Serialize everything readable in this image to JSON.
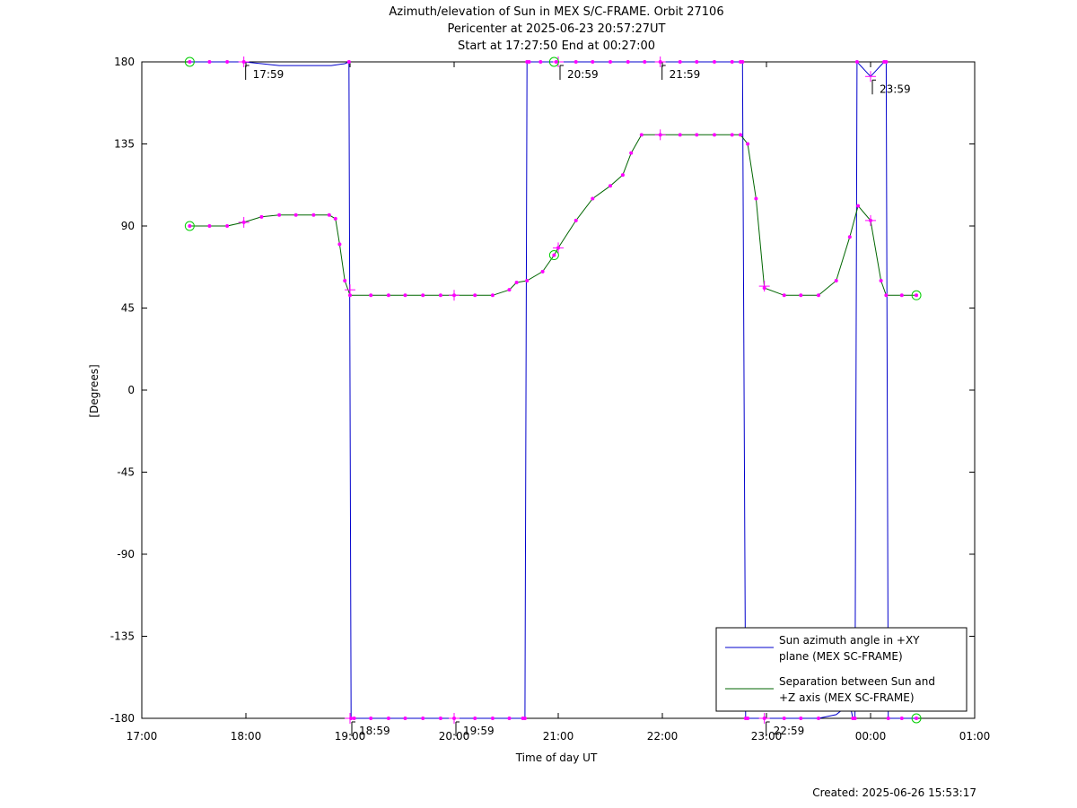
{
  "chart_data": {
    "type": "line",
    "title": [
      "Azimuth/elevation of Sun in MEX S/C-FRAME.  Orbit 27106",
      "Pericenter at 2025-06-23 20:57:27UT",
      "Start at 17:27:50 End at 00:27:00"
    ],
    "xlabel": "Time of day UT",
    "ylabel": "[Degrees]",
    "x_unit": "hours since 17:00",
    "xlim": [
      17.0,
      25.0
    ],
    "ylim": [
      -180,
      180
    ],
    "xticks": [
      17,
      18,
      19,
      20,
      21,
      22,
      23,
      24,
      25
    ],
    "xtick_labels": [
      "17:00",
      "18:00",
      "19:00",
      "20:00",
      "21:00",
      "22:00",
      "23:00",
      "00:00",
      "01:00"
    ],
    "yticks": [
      180,
      135,
      90,
      45,
      0,
      -45,
      -90,
      -135,
      -180
    ],
    "ytick_labels": [
      "180",
      "135",
      "90",
      "45",
      "0",
      "-45",
      "-90",
      "-135",
      "-180"
    ],
    "legend_position": "bottom-right",
    "series": [
      {
        "name": "Sun azimuth angle in +XY plane (MEX SC-FRAME)",
        "legend_lines": [
          "Sun azimuth angle in +XY",
          "plane (MEX SC-FRAME)"
        ],
        "color": "#0000cc",
        "x": [
          17.46,
          17.65,
          17.82,
          17.98,
          18.15,
          18.32,
          18.48,
          18.65,
          18.82,
          18.95,
          18.99,
          19.01,
          19.04,
          19.2,
          19.37,
          19.53,
          19.7,
          19.87,
          20.0,
          20.2,
          20.37,
          20.53,
          20.66,
          20.68,
          20.7,
          20.72,
          20.83,
          20.98,
          21.17,
          21.33,
          21.5,
          21.67,
          21.83,
          21.98,
          22.17,
          22.33,
          22.5,
          22.67,
          22.75,
          22.77,
          22.8,
          22.82,
          22.98,
          23.17,
          23.33,
          23.5,
          23.67,
          23.8,
          23.83,
          23.85,
          23.87,
          24.0,
          24.13,
          24.15,
          24.17,
          24.3,
          24.44
        ],
        "y": [
          180,
          180,
          180,
          180,
          179,
          178,
          178,
          178,
          178,
          179,
          180,
          -180,
          -180,
          -180,
          -180,
          -180,
          -180,
          -180,
          -180,
          -180,
          -180,
          -180,
          -180,
          -180,
          180,
          180,
          180,
          180,
          180,
          180,
          180,
          180,
          180,
          180,
          180,
          180,
          180,
          180,
          180,
          180,
          -180,
          -180,
          -180,
          -180,
          -180,
          -180,
          -178,
          -172,
          -180,
          -180,
          180,
          172,
          180,
          180,
          -180,
          -180,
          -180
        ]
      },
      {
        "name": "Separation between Sun and +Z axis (MEX SC-FRAME)",
        "legend_lines": [
          "Separation between Sun and",
          "+Z axis (MEX SC-FRAME)"
        ],
        "color": "#006600",
        "x": [
          17.46,
          17.65,
          17.82,
          17.98,
          18.15,
          18.32,
          18.48,
          18.65,
          18.8,
          18.86,
          18.9,
          18.95,
          19.0,
          19.2,
          19.37,
          19.53,
          19.7,
          19.87,
          20.0,
          20.2,
          20.37,
          20.53,
          20.6,
          20.7,
          20.85,
          20.96,
          21.0,
          21.17,
          21.33,
          21.5,
          21.62,
          21.7,
          21.8,
          21.98,
          22.17,
          22.33,
          22.5,
          22.67,
          22.75,
          22.82,
          22.9,
          22.98,
          23.17,
          23.33,
          23.5,
          23.67,
          23.8,
          23.88,
          24.0,
          24.1,
          24.15,
          24.3,
          24.44
        ],
        "y": [
          90,
          90,
          90,
          92,
          95,
          96,
          96,
          96,
          96,
          94,
          80,
          60,
          52,
          52,
          52,
          52,
          52,
          52,
          52,
          52,
          52,
          55,
          59,
          60,
          65,
          74,
          78,
          93,
          105,
          112,
          118,
          130,
          140,
          140,
          140,
          140,
          140,
          140,
          140,
          135,
          105,
          56,
          52,
          52,
          52,
          60,
          84,
          101,
          93,
          60,
          52,
          52,
          52
        ]
      }
    ],
    "markers": [
      {
        "x": 17.46,
        "y": 180,
        "kind": "start"
      },
      {
        "x": 17.46,
        "y": 90,
        "kind": "start"
      },
      {
        "x": 20.96,
        "y": 180,
        "kind": "pericenter"
      },
      {
        "x": 20.96,
        "y": 74,
        "kind": "pericenter"
      },
      {
        "x": 24.44,
        "y": -180,
        "kind": "end"
      },
      {
        "x": 24.44,
        "y": 52,
        "kind": "end"
      }
    ],
    "plus_marks": [
      {
        "x": 17.98,
        "y": 180
      },
      {
        "x": 17.98,
        "y": 92
      },
      {
        "x": 19.0,
        "y": -180
      },
      {
        "x": 19.0,
        "y": 55
      },
      {
        "x": 20.0,
        "y": -180
      },
      {
        "x": 20.0,
        "y": 52
      },
      {
        "x": 21.0,
        "y": 180
      },
      {
        "x": 21.0,
        "y": 78
      },
      {
        "x": 21.98,
        "y": 180
      },
      {
        "x": 21.98,
        "y": 140
      },
      {
        "x": 22.98,
        "y": -180
      },
      {
        "x": 22.98,
        "y": 57
      },
      {
        "x": 24.0,
        "y": 172
      },
      {
        "x": 24.0,
        "y": 93
      }
    ],
    "annotations": [
      {
        "label": "17:59",
        "x": 17.98,
        "y": 180
      },
      {
        "label": "18:59",
        "x": 19.0,
        "y": -180
      },
      {
        "label": "19:59",
        "x": 20.0,
        "y": -180
      },
      {
        "label": "20:59",
        "x": 21.0,
        "y": 180
      },
      {
        "label": "21:59",
        "x": 21.98,
        "y": 180
      },
      {
        "label": "22:59",
        "x": 22.98,
        "y": -180
      },
      {
        "label": "23:59",
        "x": 24.0,
        "y": 172
      }
    ],
    "dot_color": "#ff00ff",
    "marker_color": "#00cc00"
  },
  "footer": "Created: 2025-06-26 15:53:17"
}
